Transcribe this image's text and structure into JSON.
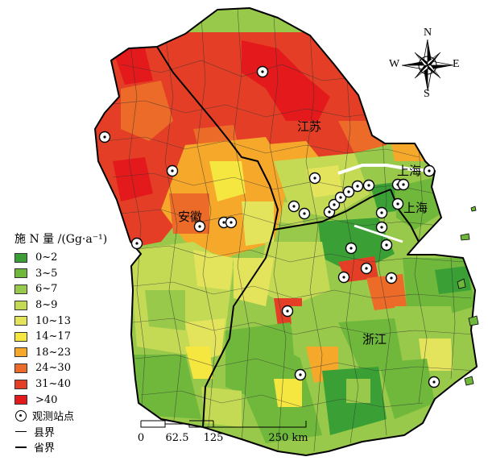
{
  "labels": {
    "jiangsu": "江苏",
    "anhui": "安徽",
    "zhejiang": "浙江",
    "shanghai_top": "上海",
    "shanghai_mid": "上海"
  },
  "legend": {
    "title": "施 N 量 /(Gg·a⁻¹)",
    "classes": [
      {
        "label": "0~2",
        "color": "#3aa035"
      },
      {
        "label": "3~5",
        "color": "#6fb83b"
      },
      {
        "label": "6~7",
        "color": "#99c94a"
      },
      {
        "label": "8~9",
        "color": "#c4da55"
      },
      {
        "label": "10~13",
        "color": "#e3e45c"
      },
      {
        "label": "14~17",
        "color": "#f5e640"
      },
      {
        "label": "18~23",
        "color": "#f5a82a"
      },
      {
        "label": "24~30",
        "color": "#ec6b28"
      },
      {
        "label": "31~40",
        "color": "#e43f26"
      },
      {
        "label": ">40",
        "color": "#e4191c"
      }
    ],
    "station_label": "观测站点",
    "county_label": "县界",
    "province_label": "省界"
  },
  "scale_bar": {
    "ticks": [
      "0",
      "62.5",
      "125",
      "250 km"
    ]
  },
  "compass": {
    "n": "N",
    "s": "S",
    "e": "E",
    "w": "W"
  }
}
